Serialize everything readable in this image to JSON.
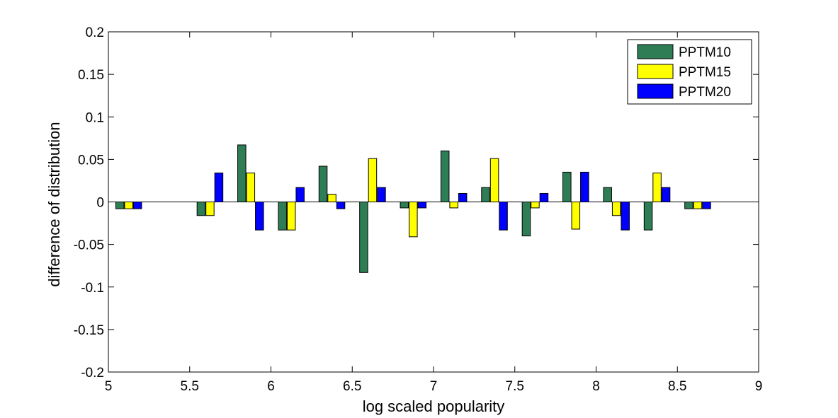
{
  "chart_data": {
    "type": "bar",
    "title": "",
    "xlabel": "log scaled popularity",
    "ylabel": "difference of distribution",
    "xlim": [
      5,
      9
    ],
    "ylim": [
      -0.2,
      0.2
    ],
    "x_ticks": [
      "5",
      "5.5",
      "6",
      "6.5",
      "7",
      "7.5",
      "8",
      "8.5",
      "9"
    ],
    "y_ticks": [
      "0.2",
      "0.15",
      "0.1",
      "0.05",
      "0",
      "-0.05",
      "-0.1",
      "-0.15",
      "-0.2"
    ],
    "grid": false,
    "legend_position": "top-right",
    "x": [
      5.125,
      5.375,
      5.625,
      5.875,
      6.125,
      6.375,
      6.625,
      6.875,
      7.125,
      7.375,
      7.625,
      7.875,
      8.125,
      8.375,
      8.625
    ],
    "series": [
      {
        "name": "PPTM10",
        "color": "#2e7d55",
        "values": [
          -0.008,
          0,
          -0.016,
          0.067,
          -0.033,
          0.042,
          -0.083,
          -0.007,
          0.06,
          0.017,
          -0.04,
          0.035,
          0.017,
          -0.033,
          -0.008
        ]
      },
      {
        "name": "PPTM15",
        "color": "#ffff00",
        "values": [
          -0.008,
          0,
          -0.016,
          0.034,
          -0.033,
          0.009,
          0.051,
          -0.041,
          -0.007,
          0.051,
          -0.007,
          -0.032,
          -0.016,
          0.034,
          -0.008
        ]
      },
      {
        "name": "PPTM20",
        "color": "#0000ff",
        "values": [
          -0.008,
          0,
          0.034,
          -0.033,
          0.017,
          -0.008,
          0.017,
          -0.007,
          0.01,
          -0.033,
          0.01,
          0.035,
          -0.033,
          0.017,
          -0.008
        ]
      }
    ]
  }
}
